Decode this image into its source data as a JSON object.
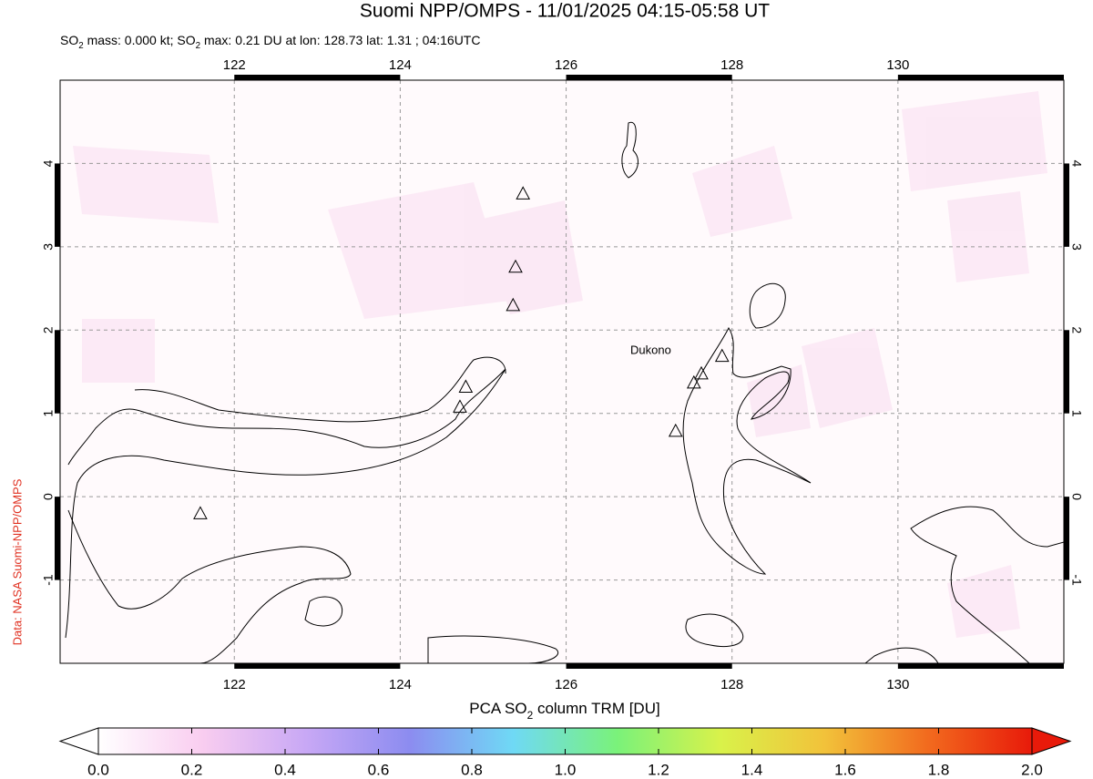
{
  "chart_data": {
    "type": "map",
    "title": "Suomi NPP/OMPS - 11/01/2025 04:15-05:58 UT",
    "subtitle_parts": [
      "SO",
      "2",
      " mass: 0.000 kt; SO",
      "2",
      " max: 0.21 DU at lon: 128.73 lat: 1.31 ; 04:16UTC"
    ],
    "source": "Data: NASA Suomi-NPP/OMPS",
    "annotation": "Dukono",
    "xlim": [
      119.9,
      132.0
    ],
    "ylim": [
      -2.0,
      5.0
    ],
    "xticks": [
      122,
      124,
      126,
      128,
      130
    ],
    "yticks": [
      -1,
      0,
      1,
      2,
      3,
      4
    ],
    "grid": true,
    "volcanoes": {
      "lon": [
        125.48,
        125.39,
        125.36,
        124.79,
        124.72,
        121.59,
        127.32,
        127.54,
        127.63,
        127.88
      ],
      "lat": [
        3.64,
        2.76,
        2.3,
        1.32,
        1.08,
        -0.2,
        0.79,
        1.37,
        1.48,
        1.69
      ]
    },
    "colorbar": {
      "label_parts": [
        "PCA SO",
        "2",
        " column TRM [DU]"
      ],
      "lim": [
        0.0,
        2.0
      ],
      "ticks": [
        {
          "value": 0.0,
          "label": "0.0"
        },
        {
          "value": 0.2,
          "label": "0.2"
        },
        {
          "value": 0.4,
          "label": "0.4"
        },
        {
          "value": 0.6,
          "label": "0.6"
        },
        {
          "value": 0.8,
          "label": "0.8"
        },
        {
          "value": 1.0,
          "label": "1.0"
        },
        {
          "value": 1.2,
          "label": "1.2"
        },
        {
          "value": 1.4,
          "label": "1.4"
        },
        {
          "value": 1.6,
          "label": "1.6"
        },
        {
          "value": 1.8,
          "label": "1.8"
        },
        {
          "value": 2.0,
          "label": "2.0"
        }
      ],
      "colors": [
        "#ffffff",
        "#f9cdf0",
        "#c8a8f5",
        "#8c8cf0",
        "#6fd9f5",
        "#7af27a",
        "#d9f24a",
        "#f2c23a",
        "#f26a1e",
        "#e81a0a"
      ]
    }
  }
}
